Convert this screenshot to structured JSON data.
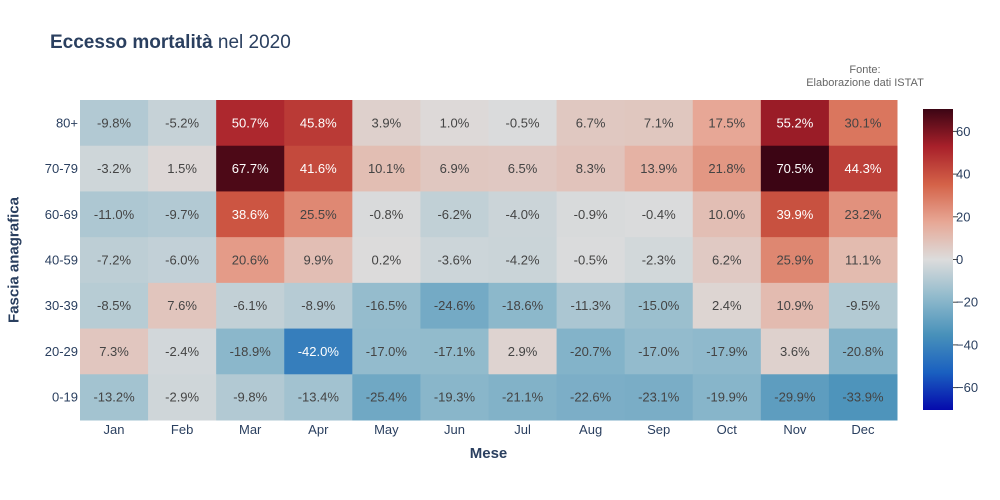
{
  "title_bold": "Eccesso mortalità",
  "title_rest": " nel 2020",
  "source": {
    "line1": "Fonte:",
    "line2": "Elaborazione dati ISTAT"
  },
  "chart_data": {
    "type": "heatmap",
    "title": "Eccesso mortalità nel 2020",
    "xlabel": "Mese",
    "ylabel": "Fascia anagrafica",
    "categories": [
      "Jan",
      "Feb",
      "Mar",
      "Apr",
      "May",
      "Jun",
      "Jul",
      "Aug",
      "Sep",
      "Oct",
      "Nov",
      "Dec"
    ],
    "rows": [
      "80+",
      "70-79",
      "60-69",
      "40-59",
      "30-39",
      "20-29",
      "0-19"
    ],
    "values": [
      [
        -9.8,
        -5.2,
        50.7,
        45.8,
        3.9,
        1.0,
        -0.5,
        6.7,
        7.1,
        17.5,
        55.2,
        30.1
      ],
      [
        -3.2,
        1.5,
        67.7,
        41.6,
        10.1,
        6.9,
        6.5,
        8.3,
        13.9,
        21.8,
        70.5,
        44.3
      ],
      [
        -11.0,
        -9.7,
        38.6,
        25.5,
        -0.8,
        -6.2,
        -4.0,
        -0.9,
        -0.4,
        10.0,
        39.9,
        23.2
      ],
      [
        -7.2,
        -6.0,
        20.6,
        9.9,
        0.2,
        -3.6,
        -4.2,
        -0.5,
        -2.3,
        6.2,
        25.9,
        11.1
      ],
      [
        -8.5,
        7.6,
        -6.1,
        -8.9,
        -16.5,
        -24.6,
        -18.6,
        -11.3,
        -15.0,
        2.4,
        10.9,
        -9.5
      ],
      [
        7.3,
        -2.4,
        -18.9,
        -42.0,
        -17.0,
        -17.1,
        2.9,
        -20.7,
        -17.0,
        -17.9,
        3.6,
        -20.8
      ],
      [
        -13.2,
        -2.9,
        -9.8,
        -13.4,
        -25.4,
        -19.3,
        -21.1,
        -22.6,
        -23.1,
        -19.9,
        -29.9,
        -33.9
      ]
    ],
    "value_suffix": "%",
    "zrange": [
      -70.5,
      70.5
    ],
    "colorscale": "RdBu reversed (blue negative, red positive)",
    "colorbar": {
      "ticks": [
        60,
        40,
        20,
        0,
        -20,
        -40,
        -60
      ],
      "tick_labels": [
        "60",
        "40",
        "20",
        "0",
        "−20",
        "−40",
        "−60"
      ]
    }
  }
}
